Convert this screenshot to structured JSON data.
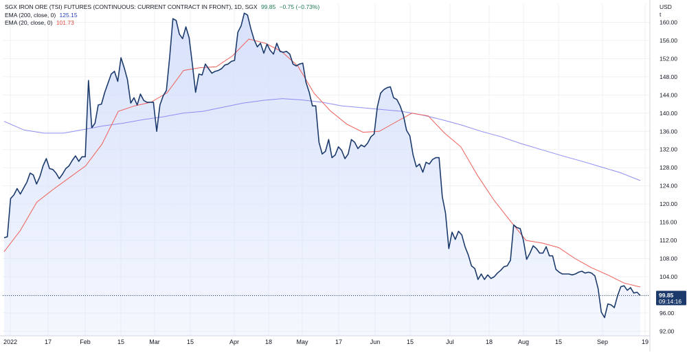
{
  "legend": {
    "main_title": "SGX IRON ORE (TSI) FUTURES (CONTINUOUS: CURRENT CONTRACT IN FRONT), 1D, SGX",
    "main_last": "99.85",
    "main_change": "−0.75 (−0.73%)",
    "ema200_label": "EMA (200, close, 0)",
    "ema200_value": "125.15",
    "ema20_label": "EMA (20, close, 0)",
    "ema20_value": "101.73"
  },
  "price_scale": {
    "currency": "USD",
    "unit": "t"
  },
  "last_price_tag": {
    "price": "99.85",
    "countdown": "09:14:16"
  },
  "colors": {
    "price_line": "#1b3a6b",
    "area_fill": "#d6e0fb",
    "ema200": "#8f8cf2",
    "ema20": "#ef5d57",
    "grid": "#eef0f4",
    "tag_bg": "#1b3a6b"
  },
  "chart_data": {
    "type": "area",
    "title": "SGX IRON ORE (TSI) FUTURES (CONTINUOUS: CURRENT CONTRACT IN FRONT), 1D, SGX",
    "ylabel": "USD t",
    "ylim": [
      91,
      164
    ],
    "y_ticks": [
      92,
      96,
      100,
      104,
      108,
      112,
      116,
      120,
      124,
      128,
      132,
      136,
      140,
      144,
      148,
      152,
      156,
      160
    ],
    "x_ticks": [
      "2022",
      "17",
      "Feb",
      "15",
      "Mar",
      "15",
      "Apr",
      "18",
      "May",
      "17",
      "Jun",
      "15",
      "Jul",
      "18",
      "Aug",
      "15",
      "Sep",
      "19"
    ],
    "grid": true,
    "series": [
      {
        "name": "SGX IRON ORE (TSI) FUTURES",
        "style": "area",
        "values": [
          112.6,
          112.8,
          121.2,
          122.0,
          123.4,
          122.2,
          123.5,
          124.8,
          126.8,
          126.4,
          124.4,
          126.0,
          128.4,
          130.0,
          127.8,
          127.6,
          126.8,
          125.6,
          126.6,
          127.8,
          128.4,
          129.6,
          130.6,
          129.4,
          130.4,
          130.4,
          147.2,
          136.8,
          137.8,
          141.8,
          142.0,
          144.6,
          146.6,
          148.6,
          149.2,
          147.0,
          152.2,
          150.0,
          147.4,
          142.2,
          143.4,
          141.8,
          144.2,
          142.8,
          142.4,
          142.4,
          142.4,
          136.0,
          141.8,
          143.8,
          145.0,
          152.2,
          160.8,
          160.4,
          157.4,
          156.4,
          159.0,
          156.6,
          150.8,
          144.6,
          148.6,
          148.4,
          150.8,
          149.8,
          148.8,
          149.2,
          149.4,
          149.8,
          150.6,
          150.8,
          151.4,
          151.6,
          157.8,
          159.2,
          162.0,
          161.6,
          158.6,
          156.2,
          154.6,
          155.4,
          153.2,
          155.2,
          153.8,
          153.0,
          155.4,
          153.6,
          153.4,
          153.6,
          153.0,
          150.8,
          150.4,
          150.8,
          151.0,
          146.8,
          144.6,
          141.6,
          141.6,
          133.6,
          131.0,
          131.6,
          134.2,
          130.2,
          130.8,
          132.6,
          131.8,
          130.0,
          131.0,
          134.2,
          133.6,
          132.2,
          133.0,
          132.6,
          133.4,
          134.8,
          135.4,
          141.4,
          144.4,
          145.2,
          145.6,
          145.8,
          143.4,
          143.0,
          141.6,
          139.6,
          136.2,
          135.0,
          130.8,
          128.2,
          128.8,
          127.0,
          129.2,
          128.8,
          129.8,
          130.2,
          130.2,
          121.6,
          118.0,
          110.2,
          113.8,
          112.2,
          114.0,
          113.2,
          110.6,
          108.8,
          106.4,
          105.8,
          103.4,
          104.6,
          103.4,
          104.4,
          103.6,
          104.0,
          104.8,
          105.4,
          106.2,
          106.4,
          107.6,
          115.4,
          114.8,
          114.6,
          112.0,
          107.8,
          109.2,
          110.8,
          110.2,
          109.2,
          109.2,
          110.6,
          108.6,
          108.6,
          105.6,
          105.0,
          104.6,
          104.6,
          104.6,
          104.4,
          104.6,
          105.0,
          105.2,
          104.8,
          105.0,
          104.8,
          104.2,
          101.4,
          96.2,
          95.0,
          98.0,
          97.8,
          97.2,
          99.8,
          101.8,
          102.0,
          101.0,
          101.6,
          100.4,
          100.6,
          99.85
        ]
      },
      {
        "name": "EMA (200, close, 0)",
        "style": "line",
        "values": [
          138.2,
          136.3,
          135.6,
          135.6,
          136.4,
          137.2,
          137.8,
          138.6,
          139.2,
          140.0,
          140.4,
          141.3,
          142.2,
          142.8,
          143.2,
          142.9,
          142.4,
          141.6,
          141.2,
          140.8,
          140.4,
          139.6,
          138.6,
          137.4,
          136.0,
          134.8,
          133.3,
          132.0,
          130.7,
          129.5,
          128.2,
          126.9,
          125.15
        ]
      },
      {
        "name": "EMA (20, close, 0)",
        "style": "line",
        "values": [
          109.5,
          114.2,
          120.4,
          123.2,
          125.8,
          128.4,
          133.2,
          140.4,
          141.6,
          142.4,
          144.5,
          149.4,
          150.0,
          150.2,
          152.6,
          156.3,
          155.4,
          153.6,
          150.4,
          144.4,
          140.5,
          137.6,
          135.8,
          136.0,
          138.0,
          140.0,
          139.4,
          135.6,
          132.6,
          126.4,
          121.0,
          116.4,
          112.0,
          111.4,
          110.4,
          108.0,
          106.0,
          104.4,
          102.6,
          101.73
        ]
      }
    ]
  }
}
